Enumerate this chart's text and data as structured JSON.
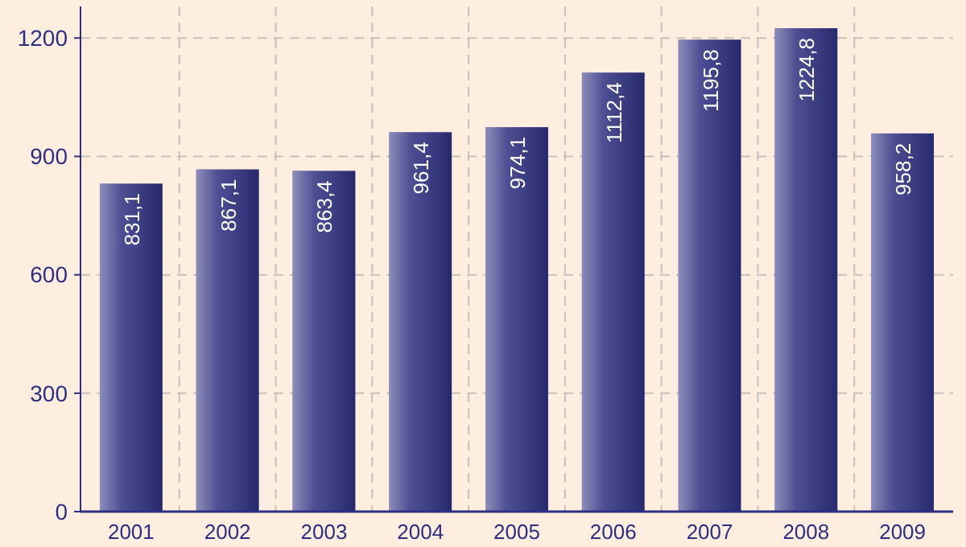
{
  "chart_data": {
    "type": "bar",
    "categories": [
      "2001",
      "2002",
      "2003",
      "2004",
      "2005",
      "2006",
      "2007",
      "2008",
      "2009"
    ],
    "values": [
      831.1,
      867.1,
      863.4,
      961.4,
      974.1,
      1112.4,
      1195.8,
      1224.8,
      958.2
    ],
    "value_labels": [
      "831,1",
      "867,1",
      "863,4",
      "961,4",
      "974,1",
      "1112,4",
      "1195,8",
      "1224,8",
      "958,2"
    ],
    "color": "#2e2f80",
    "ylim": [
      0,
      1280
    ],
    "yticks": [
      0,
      300,
      600,
      900,
      1200
    ],
    "grid": true
  }
}
